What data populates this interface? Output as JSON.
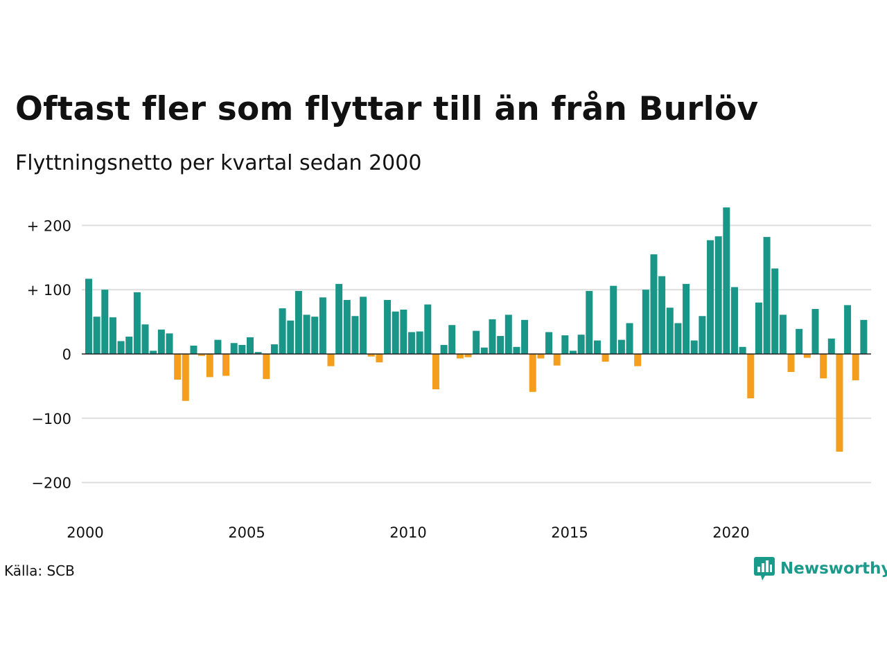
{
  "title": "Oftast fler som flyttar till än från Burlöv",
  "subtitle": "Flyttningsnetto per kvartal sedan 2000",
  "source": "Källa: SCB",
  "logo": {
    "text": "Newsworthy",
    "icon": "newsworthy-chart-icon",
    "color": "#1a9a8a"
  },
  "colors": {
    "positive": "#1a9688",
    "negative": "#f59e1d",
    "grid": "#dddddd",
    "zero_line": "#222222"
  },
  "chart_data": {
    "type": "bar",
    "title": "",
    "xlabel": "",
    "ylabel": "",
    "ylim": [
      -230,
      235
    ],
    "grid": true,
    "y_ticks": [
      {
        "value": 200,
        "label": "+ 200"
      },
      {
        "value": 100,
        "label": "+ 100"
      },
      {
        "value": 0,
        "label": "0"
      },
      {
        "value": -100,
        "label": "−100"
      },
      {
        "value": -200,
        "label": "−200"
      }
    ],
    "x_ticks": [
      {
        "value": 2000,
        "label": "2000"
      },
      {
        "value": 2005,
        "label": "2005"
      },
      {
        "value": 2010,
        "label": "2010"
      },
      {
        "value": 2015,
        "label": "2015"
      },
      {
        "value": 2020,
        "label": "2020"
      }
    ],
    "start_year": 2000,
    "x_range": [
      2000,
      2024.75
    ],
    "values": [
      117,
      58,
      100,
      57,
      20,
      27,
      96,
      46,
      5,
      38,
      32,
      -40,
      -73,
      13,
      -3,
      -36,
      22,
      -34,
      17,
      14,
      26,
      3,
      -39,
      15,
      71,
      52,
      98,
      61,
      58,
      88,
      -19,
      109,
      84,
      59,
      89,
      -4,
      -13,
      84,
      66,
      69,
      34,
      35,
      77,
      -55,
      14,
      45,
      -7,
      -5,
      36,
      10,
      54,
      28,
      61,
      11,
      53,
      -59,
      -7,
      34,
      -18,
      29,
      5,
      30,
      98,
      21,
      -12,
      106,
      22,
      48,
      -19,
      100,
      155,
      121,
      72,
      48,
      109,
      21,
      59,
      177,
      183,
      228,
      104,
      11,
      -69,
      80,
      182,
      133,
      61,
      -28,
      39,
      -6,
      70,
      -38,
      24,
      -152,
      76,
      -41,
      53
    ]
  }
}
